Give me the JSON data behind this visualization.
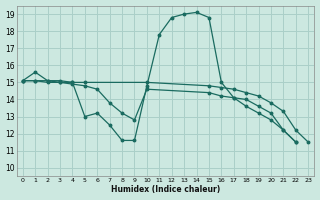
{
  "xlabel": "Humidex (Indice chaleur)",
  "bg_color": "#cce8e0",
  "grid_color": "#aacfc8",
  "line_color": "#1a6b60",
  "xlim": [
    -0.5,
    23.5
  ],
  "ylim": [
    9.5,
    19.5
  ],
  "yticks": [
    10,
    11,
    12,
    13,
    14,
    15,
    16,
    17,
    18,
    19
  ],
  "xticks": [
    0,
    1,
    2,
    3,
    4,
    5,
    6,
    7,
    8,
    9,
    10,
    11,
    12,
    13,
    14,
    15,
    16,
    17,
    18,
    19,
    20,
    21,
    22,
    23
  ],
  "lines": [
    {
      "x": [
        0,
        1,
        2,
        3,
        4,
        5,
        6,
        7,
        8,
        9,
        10,
        11,
        12,
        13,
        14,
        15,
        16,
        17,
        18,
        19,
        20,
        21,
        22
      ],
      "y": [
        15.1,
        15.6,
        15.1,
        15.1,
        15.0,
        13.0,
        13.2,
        12.5,
        11.6,
        11.6,
        14.8,
        17.8,
        18.8,
        19.0,
        19.1,
        18.8,
        15.0,
        14.1,
        13.6,
        13.2,
        12.8,
        12.2,
        11.5
      ]
    },
    {
      "x": [
        0,
        1,
        2,
        3,
        4,
        5,
        10,
        15,
        16,
        17,
        18,
        19,
        20,
        21,
        22,
        23
      ],
      "y": [
        15.1,
        15.1,
        15.1,
        15.0,
        15.0,
        15.0,
        15.0,
        14.8,
        14.7,
        14.6,
        14.4,
        14.2,
        13.8,
        13.3,
        12.2,
        11.5
      ]
    },
    {
      "x": [
        0,
        1,
        2,
        3,
        4,
        5,
        6,
        7,
        8,
        9,
        10,
        15,
        16,
        17,
        18,
        19,
        20,
        21,
        22
      ],
      "y": [
        15.1,
        15.1,
        15.0,
        15.0,
        14.9,
        14.8,
        14.6,
        13.8,
        13.2,
        12.8,
        14.6,
        14.4,
        14.2,
        14.1,
        14.0,
        13.6,
        13.2,
        12.2,
        11.5
      ]
    }
  ]
}
